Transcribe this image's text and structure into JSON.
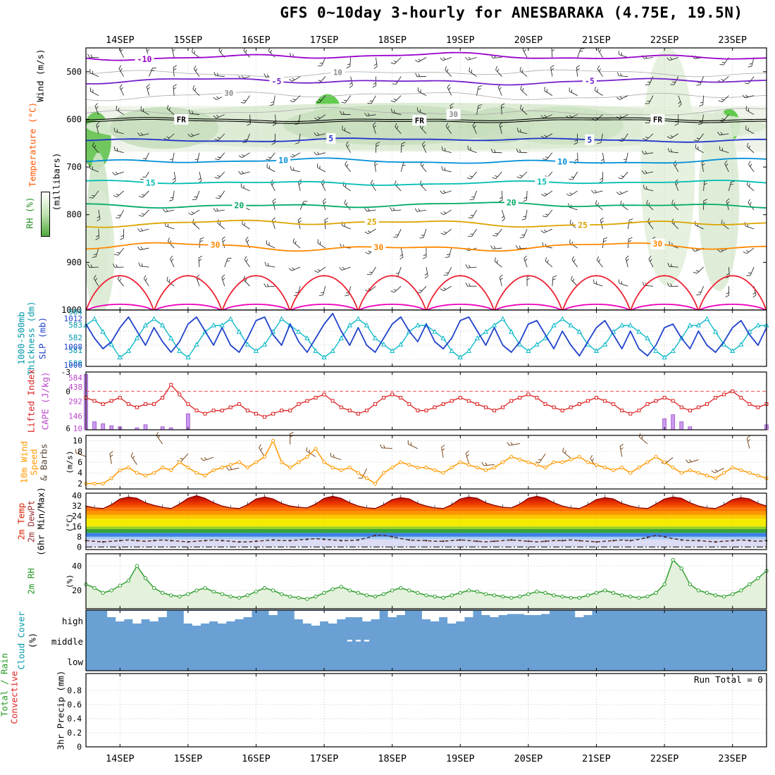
{
  "title": "GFS 0~10day 3-hourly for ANESBARAKA (4.75E, 19.5N)",
  "run_total_label": "Run Total = 0",
  "left_labels": {
    "p1_wind": "Wind (m/s)",
    "p1_temp": "Temperature (°C)",
    "p1_rh": "RH (%)",
    "p1_mb": "(millibars)",
    "p2_thk1": "1000-500mb",
    "p2_thk2": "Thickness (dm)",
    "p2_slp": "SLP (mb)",
    "p3_li": "Lifted Index",
    "p3_cape": "CAPE (J/kg)",
    "p4_wind1": "10m Wind",
    "p4_wind2": "Speed",
    "p4_barbs": "& Barbs",
    "p4_unit": "(m/s)",
    "p5_temp": "2m Temp",
    "p5_dew": "2m DewPt",
    "p5_minmax": "(6hr Min/Max)",
    "p5_unit": "(°C)",
    "p6_rh": "2m RH",
    "p6_unit": "(%)",
    "p7_cloud": "Cloud Cover",
    "p7_unit": "(%)",
    "p8_total": "Total / Rain",
    "p8_conv": "Convective",
    "p8_precip": "3hr Precip (mm)"
  },
  "chart_data": {
    "type": "line",
    "title": "GFS 0~10day 3-hourly for ANESBARAKA (4.75E, 19.5N)",
    "station": "ANESBARAKA (4.75E, 19.5N)",
    "x_axis": {
      "tick_labels": [
        "14SEP",
        "15SEP",
        "16SEP",
        "17SEP",
        "18SEP",
        "19SEP",
        "20SEP",
        "21SEP",
        "22SEP",
        "23SEP"
      ],
      "span_days": 10,
      "steps": 81,
      "interval_hours": 3
    },
    "pressure_section": {
      "ylabel": "(millibars)",
      "ylim": [
        450,
        1000
      ],
      "yticks": [
        500,
        600,
        700,
        800,
        900,
        1000
      ],
      "contours": [
        {
          "level": "-10",
          "color": "#9900cc",
          "p": 468,
          "amp": 9,
          "ph": 0.3,
          "labels": [
            0.086
          ]
        },
        {
          "level": "-5",
          "color": "#7722cc",
          "p": 520,
          "amp": 8,
          "ph": 1.4,
          "labels": [
            0.28,
            0.74
          ]
        },
        {
          "level": "5",
          "color": "#2233cc",
          "p": 643,
          "amp": 5,
          "ph": 3.1,
          "labels": [
            0.36,
            0.74
          ]
        },
        {
          "level": "10",
          "color": "#0090d8",
          "p": 688,
          "amp": 7,
          "ph": 4.0,
          "labels": [
            0.29,
            0.7
          ]
        },
        {
          "level": "15",
          "color": "#00bdb4",
          "p": 733,
          "amp": 6,
          "ph": 4.9,
          "labels": [
            0.095,
            0.67
          ]
        },
        {
          "level": "20",
          "color": "#00aa66",
          "p": 780,
          "amp": 7,
          "ph": 5.8,
          "labels": [
            0.225,
            0.625
          ]
        },
        {
          "level": "25",
          "color": "#dca400",
          "p": 818,
          "amp": 9,
          "ph": 0.9,
          "labels": [
            0.42,
            0.73
          ]
        },
        {
          "level": "30",
          "color": "#ff8800",
          "p": 868,
          "amp": 11,
          "ph": 1.9,
          "labels": [
            0.19,
            0.43,
            0.84
          ]
        }
      ],
      "surface_isotherm_arcs": [
        {
          "color": "#ee2233",
          "base": 1008,
          "depth": 80,
          "pow": 0.65
        },
        {
          "color": "#ee00bb",
          "base": 1004,
          "depth": 16,
          "pow": 0.5
        }
      ],
      "freezing_line": {
        "label": "FR",
        "p": 600,
        "amp": 5,
        "ph": 2.2,
        "label_at": [
          0.14,
          0.49,
          0.84
        ]
      },
      "gray_contours": [
        {
          "level": "10",
          "p": 503,
          "amp": 9,
          "ph": 2.6,
          "labels": [
            0.37
          ]
        },
        {
          "level": "30",
          "p": 550,
          "amp": 11,
          "ph": 0.8,
          "labels": [
            0.21
          ]
        },
        {
          "level": "30",
          "p": 585,
          "amp": 10,
          "ph": 3.9,
          "labels": [
            0.54
          ]
        }
      ],
      "shading": [
        {
          "d": 0.15,
          "p": 645,
          "rd": 0.22,
          "rp": 60,
          "c": "#63c24f"
        },
        {
          "d": 0.18,
          "p": 820,
          "rd": 0.17,
          "rp": 150,
          "c": "#cfe4c6"
        },
        {
          "d": 3.55,
          "p": 585,
          "rd": 0.2,
          "rp": 38,
          "c": "#52c63e"
        },
        {
          "d": 9.45,
          "p": 612,
          "rd": 0.16,
          "rp": 34,
          "c": "#52c63e"
        },
        {
          "d": 5.0,
          "p": 615,
          "rd": 5.0,
          "rp": 50,
          "c": "#dcebd4"
        },
        {
          "d": 4.5,
          "p": 612,
          "rd": 1.6,
          "rp": 42,
          "c": "#c8dfbe"
        },
        {
          "d": 1.15,
          "p": 618,
          "rd": 0.8,
          "rp": 44,
          "c": "#c8dfbe"
        },
        {
          "d": 6.1,
          "p": 612,
          "rd": 0.5,
          "rp": 38,
          "c": "#c8dfbe"
        },
        {
          "d": 7.0,
          "p": 613,
          "rd": 0.9,
          "rp": 40,
          "c": "#cde2c3"
        },
        {
          "d": 8.55,
          "p": 700,
          "rd": 0.4,
          "rp": 250,
          "c": "#e3efdb"
        },
        {
          "d": 9.3,
          "p": 770,
          "rd": 0.3,
          "rp": 190,
          "c": "#dcebd4"
        },
        {
          "d": 0.2,
          "p": 880,
          "rd": 0.22,
          "rp": 130,
          "c": "#dcebd4"
        }
      ],
      "wind_barbs": "3-hourly x pressure-level grid"
    },
    "slp": {
      "name": "SLP (mb)",
      "color": "#2244cc",
      "ylim": [
        1005,
        1013
      ],
      "yticks": [
        1012,
        1008,
        1006
      ],
      "values": [
        1011,
        1009,
        1007.5,
        1008.5,
        1010.5,
        1012,
        1010,
        1008,
        1010.5,
        1008.5,
        1007,
        1008.5,
        1011,
        1012,
        1010,
        1008,
        1010.5,
        1008,
        1007,
        1009,
        1011.5,
        1012,
        1009.5,
        1008,
        1011,
        1008.5,
        1007,
        1009,
        1011,
        1012.5,
        1010,
        1008,
        1010.5,
        1008,
        1007,
        1009,
        1011,
        1012,
        1010,
        1008.5,
        1011,
        1008.5,
        1007.5,
        1009,
        1011.5,
        1012,
        1010,
        1008,
        1010.5,
        1008,
        1007,
        1008.5,
        1011,
        1011.5,
        1009.5,
        1007.5,
        1010,
        1008,
        1006.5,
        1008.5,
        1010.5,
        1011.5,
        1009.5,
        1007.5,
        1010,
        1007.5,
        1006.5,
        1008,
        1010.5,
        1011,
        1009,
        1007.5,
        1010,
        1008,
        1007,
        1008.5,
        1010.5,
        1011.5,
        1009.5,
        1008,
        1010.5
      ]
    },
    "thickness": {
      "name": "1000-500mb Thickness (dm)",
      "color": "#00b5c5",
      "ylim": [
        579.8,
        584.2
      ],
      "yticks": [
        584,
        583,
        582,
        581,
        580
      ],
      "values": [
        583,
        583.5,
        582.5,
        581.5,
        580.5,
        581,
        582,
        583,
        583.5,
        583,
        582,
        581,
        580.5,
        581.5,
        582.5,
        583,
        583,
        583.5,
        582.5,
        581.5,
        581,
        581.5,
        582.5,
        583.5,
        583,
        582.5,
        582,
        581,
        580.5,
        581,
        582,
        583,
        583.5,
        583,
        582,
        581.5,
        581,
        581.5,
        582.5,
        583,
        583,
        582.5,
        582,
        581,
        580.5,
        581,
        582,
        582.5,
        583,
        583.5,
        582.5,
        581.5,
        581,
        581.5,
        582,
        583,
        583.5,
        583,
        582.5,
        581.5,
        581,
        581.5,
        582.5,
        583,
        583,
        582.5,
        582,
        581,
        580.5,
        581,
        582,
        583,
        583,
        583.5,
        582.5,
        581.5,
        581,
        581.5,
        582.5,
        583,
        583
      ]
    },
    "lifted_index": {
      "name": "Lifted Index",
      "color": "#dd2222",
      "ylim": [
        -3,
        6
      ],
      "yticks": [
        -3,
        0,
        6
      ],
      "values": [
        1,
        1.5,
        2,
        1.5,
        1,
        2,
        2.5,
        2,
        2,
        1,
        -1,
        0.5,
        2,
        3,
        3.5,
        3,
        3,
        2.5,
        2,
        3,
        3.5,
        4,
        3.5,
        3,
        3,
        2,
        1.5,
        1,
        0.5,
        1.5,
        2.5,
        3,
        3.5,
        3,
        2,
        1,
        0.5,
        1,
        2,
        3,
        3,
        2.5,
        2,
        1.5,
        1,
        1.5,
        2,
        2.5,
        3,
        2.5,
        1.5,
        1,
        0.5,
        1,
        2,
        2.5,
        3,
        2.5,
        2,
        1.5,
        1,
        1.5,
        2,
        3,
        3.5,
        3,
        2,
        1.5,
        1,
        1.5,
        2.5,
        3,
        2.5,
        2,
        1,
        0.5,
        0,
        1,
        2,
        2.5,
        2
      ]
    },
    "cape": {
      "name": "CAPE (J/kg)",
      "color": "#cc99ee",
      "ylim": [
        10,
        584
      ],
      "yticks": [
        584,
        438,
        292,
        146,
        10
      ],
      "values": [
        560,
        90,
        70,
        50,
        40,
        0,
        30,
        60,
        0,
        40,
        30,
        0,
        170,
        0,
        0,
        0,
        0,
        0,
        0,
        0,
        0,
        0,
        0,
        0,
        0,
        0,
        0,
        0,
        0,
        0,
        0,
        0,
        0,
        0,
        0,
        0,
        0,
        0,
        0,
        0,
        0,
        0,
        0,
        0,
        0,
        0,
        0,
        0,
        0,
        0,
        0,
        0,
        0,
        0,
        0,
        0,
        0,
        0,
        0,
        0,
        0,
        0,
        0,
        0,
        0,
        0,
        0,
        0,
        120,
        160,
        90,
        40,
        0,
        0,
        0,
        0,
        0,
        0,
        0,
        0,
        60
      ]
    },
    "wind10m": {
      "name": "10m Wind Speed (m/s)",
      "color": "#ff9900",
      "ylim": [
        1,
        11
      ],
      "yticks": [
        10,
        8,
        6,
        4,
        2
      ],
      "values": [
        2,
        2,
        2,
        3,
        4.5,
        5,
        4,
        3.5,
        4,
        5,
        4.5,
        6,
        5,
        4,
        3.5,
        4.5,
        5,
        5.5,
        6,
        5,
        6,
        7,
        10,
        6,
        5,
        6,
        7,
        8.5,
        6,
        5,
        4.5,
        5,
        4,
        3,
        2,
        4,
        5,
        6,
        5.5,
        5,
        5,
        4.5,
        4,
        5,
        6,
        5.5,
        5,
        4.5,
        5,
        6,
        7,
        6.5,
        6,
        5.5,
        5,
        6,
        6,
        6.5,
        7,
        6,
        5.5,
        5,
        4.5,
        5,
        4,
        5,
        6,
        7,
        6,
        5,
        4,
        4.5,
        4,
        3.5,
        3,
        4,
        5,
        4.5,
        4,
        3.5,
        3
      ]
    },
    "t2m": {
      "name": "2m Temp (°C)",
      "ylim": [
        -2,
        42
      ],
      "yticks": [
        40,
        32,
        24,
        16,
        8,
        0
      ],
      "values": [
        32,
        30.5,
        30,
        33,
        37.5,
        39,
        38,
        34.5,
        32.5,
        31,
        30,
        33.5,
        38,
        40,
        38,
        34.5,
        32,
        30.5,
        30,
        33,
        37.5,
        39,
        37.5,
        34,
        32,
        31,
        30.5,
        33.5,
        38,
        39.5,
        38,
        34.5,
        32,
        30.5,
        30,
        33,
        37,
        38.5,
        37.5,
        34,
        32,
        30.5,
        30,
        33,
        37.5,
        39,
        38,
        34.5,
        32.5,
        31,
        30.5,
        33.5,
        38,
        39.5,
        38,
        34.5,
        32,
        30.5,
        30,
        33,
        37,
        38.5,
        37.5,
        34,
        32,
        30.5,
        30,
        33.5,
        37.5,
        39,
        38,
        34.5,
        32,
        30.5,
        30,
        33,
        37,
        38.5,
        37.5,
        34,
        32
      ]
    },
    "td2m": {
      "name": "2m DewPt (°C)",
      "color": "#503030",
      "values": [
        5,
        4.5,
        4,
        4.5,
        5,
        5.5,
        5,
        4.5,
        5,
        5.5,
        5,
        4.5,
        4,
        4.5,
        5,
        5.5,
        5,
        4.5,
        4,
        4,
        4.5,
        5,
        5.5,
        5,
        5,
        5.5,
        6,
        6.5,
        6,
        5.5,
        5,
        5,
        5.5,
        7,
        9,
        9,
        8,
        6.5,
        5.5,
        5,
        5,
        4.5,
        4.5,
        5,
        5.5,
        5,
        4.5,
        4,
        4.5,
        5,
        5.5,
        5,
        4.5,
        4,
        4.5,
        5,
        5,
        5.5,
        5,
        4.5,
        4,
        4.5,
        5,
        5.5,
        5,
        6,
        7.5,
        9,
        8,
        6.5,
        5.5,
        5,
        5,
        4.5,
        4,
        4.5,
        5,
        5.5,
        5,
        4.5,
        5
      ]
    },
    "temp_bands": [
      {
        "from": 0,
        "to": 6,
        "color": "#dcdcf4"
      },
      {
        "from": 6,
        "to": 8,
        "color": "#a6cdf6"
      },
      {
        "from": 8,
        "to": 11,
        "color": "#4080e8"
      },
      {
        "from": 11,
        "to": 14,
        "color": "#36a43c"
      },
      {
        "from": 14,
        "to": 16,
        "color": "#98d020"
      },
      {
        "from": 16,
        "to": 22,
        "color": "#f4ec00"
      },
      {
        "from": 22,
        "to": 25,
        "color": "#fcc800"
      },
      {
        "from": 25,
        "to": 28,
        "color": "#fc9800"
      },
      {
        "from": 28,
        "to": 30,
        "color": "#fc7000"
      }
    ],
    "rh2m": {
      "name": "2m RH (%)",
      "color": "#33a033",
      "ylim": [
        5,
        50
      ],
      "yticks": [
        40,
        20
      ],
      "values": [
        25,
        22,
        18,
        20,
        24,
        28,
        40,
        30,
        22,
        18,
        16,
        15,
        17,
        20,
        22,
        19,
        17,
        15,
        14,
        16,
        19,
        22,
        20,
        17,
        15,
        14,
        13,
        15,
        18,
        21,
        23,
        20,
        18,
        16,
        15,
        17,
        20,
        22,
        20,
        18,
        16,
        15,
        14,
        16,
        18,
        20,
        19,
        17,
        16,
        15,
        14,
        15,
        17,
        19,
        18,
        16,
        15,
        14,
        14,
        16,
        18,
        20,
        18,
        16,
        15,
        14,
        15,
        18,
        25,
        45,
        38,
        25,
        20,
        18,
        16,
        15,
        17,
        20,
        25,
        30,
        36
      ]
    },
    "cloud": {
      "rows": [
        "high",
        "middle",
        "low"
      ],
      "bg_color": "#6aa0d4",
      "high": [
        0,
        0,
        0,
        0.3,
        0.5,
        0.4,
        0.6,
        0.4,
        0.5,
        0.3,
        0,
        0,
        0.6,
        0.7,
        0.6,
        0.5,
        0.6,
        0.5,
        0.4,
        0.3,
        0,
        0,
        0.2,
        0,
        0,
        0.4,
        0.6,
        0.7,
        0.5,
        0.6,
        0.4,
        0.3,
        0.3,
        0.5,
        0.4,
        0,
        0.3,
        0.2,
        0,
        0,
        0.4,
        0.5,
        0.3,
        0.6,
        0.5,
        0.3,
        0,
        0.2,
        0.3,
        0.2,
        0.15,
        0.15,
        0.2,
        0.2,
        0.15,
        0,
        0,
        0,
        0.3,
        0.2,
        0,
        0,
        0,
        0,
        0,
        0,
        0,
        0,
        0,
        0,
        0,
        0,
        0,
        0,
        0,
        0,
        0,
        0,
        0,
        0,
        0
      ],
      "middle": [
        0,
        0,
        0,
        0,
        0,
        0,
        0,
        0,
        0,
        0,
        0,
        0,
        0,
        0,
        0,
        0,
        0,
        0,
        0,
        0,
        0,
        0,
        0,
        0,
        0,
        0,
        0,
        0,
        0,
        0,
        0,
        0.12,
        0.1,
        0.12,
        0,
        0,
        0,
        0,
        0,
        0,
        0,
        0,
        0,
        0,
        0,
        0,
        0,
        0,
        0,
        0,
        0,
        0,
        0,
        0,
        0,
        0,
        0,
        0,
        0,
        0,
        0,
        0,
        0,
        0,
        0,
        0,
        0,
        0,
        0,
        0,
        0,
        0,
        0,
        0,
        0,
        0,
        0,
        0,
        0,
        0,
        0
      ],
      "low_all_zero": true
    },
    "precip": {
      "name": "3hr Precip (mm)",
      "ylim": [
        0,
        1.04
      ],
      "yticks": [
        0.8,
        0.6,
        0.4,
        0.2,
        0
      ],
      "run_total": 0,
      "series": [
        {
          "name": "Total / Rain",
          "color": "#229922",
          "all_zero": true
        },
        {
          "name": "Convective",
          "color": "#dd2222",
          "all_zero": true
        }
      ]
    }
  }
}
